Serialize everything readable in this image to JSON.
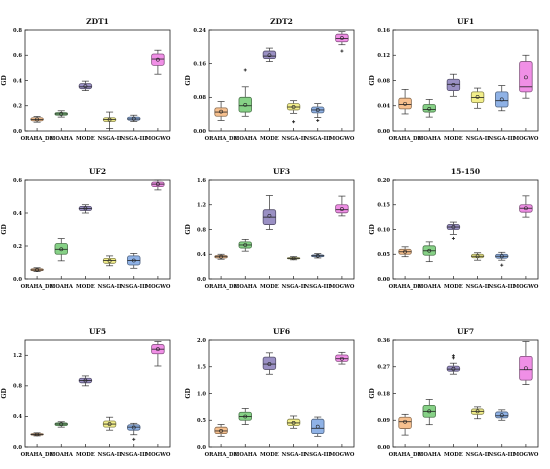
{
  "figure": {
    "categories": [
      "ORAHA_DE",
      "MOAHA",
      "MODE",
      "NSGA-II",
      "NSGA-III",
      "MOGWO"
    ],
    "box_colors": {
      "ORAHA_DE": "#f7c08e",
      "MOAHA": "#86d186",
      "MODE": "#9a90c4",
      "NSGA-II": "#f2ee8a",
      "NSGA-III": "#8fb2e6",
      "MOGWO": "#f08fe6"
    }
  },
  "chart_data": [
    {
      "type": "box",
      "title": "ZDT1",
      "ylabel": "GD",
      "ylim": [
        0,
        0.8
      ],
      "yticks": [
        "0.0",
        "0.2",
        "0.4",
        "0.6",
        "0.8"
      ],
      "boxes": [
        {
          "category": "ORAHA_DE",
          "min": 0.07,
          "q1": 0.08,
          "median": 0.09,
          "q3": 0.105,
          "max": 0.115,
          "mean": 0.092,
          "outliers": []
        },
        {
          "category": "MOAHA",
          "min": 0.11,
          "q1": 0.125,
          "median": 0.135,
          "q3": 0.145,
          "max": 0.16,
          "mean": 0.135,
          "outliers": []
        },
        {
          "category": "MODE",
          "min": 0.32,
          "q1": 0.335,
          "median": 0.35,
          "q3": 0.375,
          "max": 0.395,
          "mean": 0.355,
          "outliers": []
        },
        {
          "category": "NSGA-II",
          "min": 0.02,
          "q1": 0.075,
          "median": 0.09,
          "q3": 0.105,
          "max": 0.15,
          "mean": 0.09,
          "outliers": []
        },
        {
          "category": "NSGA-III",
          "min": 0.075,
          "q1": 0.085,
          "median": 0.095,
          "q3": 0.11,
          "max": 0.125,
          "mean": 0.097,
          "outliers": []
        },
        {
          "category": "MOGWO",
          "min": 0.45,
          "q1": 0.52,
          "median": 0.57,
          "q3": 0.61,
          "max": 0.64,
          "mean": 0.565,
          "outliers": []
        }
      ]
    },
    {
      "type": "box",
      "title": "ZDT2",
      "ylabel": "GD",
      "ylim": [
        0,
        0.24
      ],
      "yticks": [
        "0.00",
        "0.08",
        "0.16",
        "0.24"
      ],
      "boxes": [
        {
          "category": "ORAHA_DE",
          "min": 0.025,
          "q1": 0.035,
          "median": 0.045,
          "q3": 0.055,
          "max": 0.07,
          "mean": 0.046,
          "outliers": []
        },
        {
          "category": "MOAHA",
          "min": 0.035,
          "q1": 0.045,
          "median": 0.06,
          "q3": 0.08,
          "max": 0.105,
          "mean": 0.062,
          "outliers": [
            0.145
          ]
        },
        {
          "category": "MODE",
          "min": 0.165,
          "q1": 0.172,
          "median": 0.178,
          "q3": 0.19,
          "max": 0.197,
          "mean": 0.18,
          "outliers": []
        },
        {
          "category": "NSGA-II",
          "min": 0.042,
          "q1": 0.05,
          "median": 0.057,
          "q3": 0.065,
          "max": 0.072,
          "mean": 0.057,
          "outliers": [
            0.022
          ]
        },
        {
          "category": "NSGA-III",
          "min": 0.032,
          "q1": 0.043,
          "median": 0.05,
          "q3": 0.057,
          "max": 0.065,
          "mean": 0.05,
          "outliers": [
            0.025
          ]
        },
        {
          "category": "MOGWO",
          "min": 0.205,
          "q1": 0.212,
          "median": 0.22,
          "q3": 0.23,
          "max": 0.236,
          "mean": 0.221,
          "outliers": [
            0.19
          ]
        }
      ]
    },
    {
      "type": "box",
      "title": "UF1",
      "ylabel": "GD",
      "ylim": [
        0,
        0.16
      ],
      "yticks": [
        "0.00",
        "0.04",
        "0.08",
        "0.12",
        "0.16"
      ],
      "boxes": [
        {
          "category": "ORAHA_DE",
          "min": 0.027,
          "q1": 0.035,
          "median": 0.042,
          "q3": 0.052,
          "max": 0.066,
          "mean": 0.043,
          "outliers": []
        },
        {
          "category": "MOAHA",
          "min": 0.022,
          "q1": 0.03,
          "median": 0.034,
          "q3": 0.042,
          "max": 0.05,
          "mean": 0.035,
          "outliers": []
        },
        {
          "category": "MODE",
          "min": 0.055,
          "q1": 0.064,
          "median": 0.074,
          "q3": 0.082,
          "max": 0.09,
          "mean": 0.073,
          "outliers": []
        },
        {
          "category": "NSGA-II",
          "min": 0.036,
          "q1": 0.045,
          "median": 0.053,
          "q3": 0.062,
          "max": 0.068,
          "mean": 0.054,
          "outliers": []
        },
        {
          "category": "NSGA-III",
          "min": 0.032,
          "q1": 0.038,
          "median": 0.048,
          "q3": 0.062,
          "max": 0.072,
          "mean": 0.05,
          "outliers": []
        },
        {
          "category": "MOGWO",
          "min": 0.052,
          "q1": 0.062,
          "median": 0.07,
          "q3": 0.11,
          "max": 0.12,
          "mean": 0.085,
          "outliers": []
        }
      ]
    },
    {
      "type": "box",
      "title": "UF2",
      "ylabel": "GD",
      "ylim": [
        0,
        0.6
      ],
      "yticks": [
        "0.0",
        "0.2",
        "0.4",
        "0.6"
      ],
      "boxes": [
        {
          "category": "ORAHA_DE",
          "min": 0.045,
          "q1": 0.05,
          "median": 0.055,
          "q3": 0.062,
          "max": 0.068,
          "mean": 0.056,
          "outliers": []
        },
        {
          "category": "MOAHA",
          "min": 0.11,
          "q1": 0.15,
          "median": 0.18,
          "q3": 0.215,
          "max": 0.245,
          "mean": 0.18,
          "outliers": []
        },
        {
          "category": "MODE",
          "min": 0.4,
          "q1": 0.415,
          "median": 0.428,
          "q3": 0.44,
          "max": 0.45,
          "mean": 0.428,
          "outliers": []
        },
        {
          "category": "NSGA-II",
          "min": 0.08,
          "q1": 0.095,
          "median": 0.112,
          "q3": 0.125,
          "max": 0.14,
          "mean": 0.11,
          "outliers": []
        },
        {
          "category": "NSGA-III",
          "min": 0.065,
          "q1": 0.085,
          "median": 0.112,
          "q3": 0.14,
          "max": 0.155,
          "mean": 0.112,
          "outliers": []
        },
        {
          "category": "MOGWO",
          "min": 0.54,
          "q1": 0.56,
          "median": 0.575,
          "q3": 0.588,
          "max": 0.6,
          "mean": 0.575,
          "outliers": []
        }
      ]
    },
    {
      "type": "box",
      "title": "UF3",
      "ylabel": "GD",
      "ylim": [
        0,
        1.6
      ],
      "yticks": [
        "0.0",
        "0.4",
        "0.8",
        "1.2",
        "1.6"
      ],
      "boxes": [
        {
          "category": "ORAHA_DE",
          "min": 0.32,
          "q1": 0.34,
          "median": 0.36,
          "q3": 0.38,
          "max": 0.4,
          "mean": 0.36,
          "outliers": []
        },
        {
          "category": "MOAHA",
          "min": 0.45,
          "q1": 0.5,
          "median": 0.55,
          "q3": 0.6,
          "max": 0.64,
          "mean": 0.55,
          "outliers": []
        },
        {
          "category": "MODE",
          "min": 0.8,
          "q1": 0.88,
          "median": 1.0,
          "q3": 1.12,
          "max": 1.35,
          "mean": 1.02,
          "outliers": []
        },
        {
          "category": "NSGA-II",
          "min": 0.31,
          "q1": 0.325,
          "median": 0.335,
          "q3": 0.345,
          "max": 0.36,
          "mean": 0.335,
          "outliers": []
        },
        {
          "category": "NSGA-III",
          "min": 0.34,
          "q1": 0.36,
          "median": 0.375,
          "q3": 0.39,
          "max": 0.41,
          "mean": 0.375,
          "outliers": []
        },
        {
          "category": "MOGWO",
          "min": 1.02,
          "q1": 1.07,
          "median": 1.12,
          "q3": 1.2,
          "max": 1.34,
          "mean": 1.13,
          "outliers": []
        }
      ]
    },
    {
      "type": "box",
      "title": "15-150",
      "ylabel": "GD",
      "ylim": [
        0,
        0.2
      ],
      "yticks": [
        "0.00",
        "0.05",
        "0.10",
        "0.15",
        "0.20"
      ],
      "boxes": [
        {
          "category": "ORAHA_DE",
          "min": 0.045,
          "q1": 0.05,
          "median": 0.055,
          "q3": 0.06,
          "max": 0.065,
          "mean": 0.055,
          "outliers": []
        },
        {
          "category": "MOAHA",
          "min": 0.035,
          "q1": 0.048,
          "median": 0.057,
          "q3": 0.067,
          "max": 0.075,
          "mean": 0.057,
          "outliers": []
        },
        {
          "category": "MODE",
          "min": 0.09,
          "q1": 0.1,
          "median": 0.105,
          "q3": 0.11,
          "max": 0.115,
          "mean": 0.105,
          "outliers": [
            0.082
          ]
        },
        {
          "category": "NSGA-II",
          "min": 0.038,
          "q1": 0.043,
          "median": 0.046,
          "q3": 0.05,
          "max": 0.053,
          "mean": 0.046,
          "outliers": []
        },
        {
          "category": "NSGA-III",
          "min": 0.038,
          "q1": 0.042,
          "median": 0.046,
          "q3": 0.05,
          "max": 0.054,
          "mean": 0.046,
          "outliers": [
            0.028
          ]
        },
        {
          "category": "MOGWO",
          "min": 0.125,
          "q1": 0.135,
          "median": 0.143,
          "q3": 0.15,
          "max": 0.168,
          "mean": 0.143,
          "outliers": []
        }
      ]
    },
    {
      "type": "box",
      "title": "UF5",
      "ylabel": "GD",
      "ylim": [
        0,
        1.4
      ],
      "yticks": [
        "0.0",
        "0.4",
        "0.8",
        "1.2"
      ],
      "boxes": [
        {
          "category": "ORAHA_DE",
          "min": 0.145,
          "q1": 0.155,
          "median": 0.165,
          "q3": 0.175,
          "max": 0.185,
          "mean": 0.165,
          "outliers": []
        },
        {
          "category": "MOAHA",
          "min": 0.26,
          "q1": 0.28,
          "median": 0.3,
          "q3": 0.315,
          "max": 0.33,
          "mean": 0.3,
          "outliers": []
        },
        {
          "category": "MODE",
          "min": 0.8,
          "q1": 0.84,
          "median": 0.87,
          "q3": 0.9,
          "max": 0.93,
          "mean": 0.87,
          "outliers": []
        },
        {
          "category": "NSGA-II",
          "min": 0.22,
          "q1": 0.26,
          "median": 0.3,
          "q3": 0.34,
          "max": 0.39,
          "mean": 0.3,
          "outliers": []
        },
        {
          "category": "NSGA-III",
          "min": 0.16,
          "q1": 0.22,
          "median": 0.26,
          "q3": 0.29,
          "max": 0.31,
          "mean": 0.255,
          "outliers": [
            0.1
          ]
        },
        {
          "category": "MOGWO",
          "min": 1.06,
          "q1": 1.22,
          "median": 1.28,
          "q3": 1.34,
          "max": 1.38,
          "mean": 1.28,
          "outliers": []
        }
      ]
    },
    {
      "type": "box",
      "title": "UF6",
      "ylabel": "GD",
      "ylim": [
        0,
        2.0
      ],
      "yticks": [
        "0.0",
        "0.5",
        "1.0",
        "1.5",
        "2.0"
      ],
      "boxes": [
        {
          "category": "ORAHA_DE",
          "min": 0.2,
          "q1": 0.25,
          "median": 0.3,
          "q3": 0.37,
          "max": 0.42,
          "mean": 0.3,
          "outliers": []
        },
        {
          "category": "MOAHA",
          "min": 0.42,
          "q1": 0.5,
          "median": 0.57,
          "q3": 0.65,
          "max": 0.72,
          "mean": 0.57,
          "outliers": []
        },
        {
          "category": "MODE",
          "min": 1.36,
          "q1": 1.45,
          "median": 1.55,
          "q3": 1.68,
          "max": 1.76,
          "mean": 1.55,
          "outliers": []
        },
        {
          "category": "NSGA-II",
          "min": 0.35,
          "q1": 0.4,
          "median": 0.45,
          "q3": 0.52,
          "max": 0.58,
          "mean": 0.45,
          "outliers": []
        },
        {
          "category": "NSGA-III",
          "min": 0.2,
          "q1": 0.25,
          "median": 0.35,
          "q3": 0.52,
          "max": 0.56,
          "mean": 0.38,
          "outliers": []
        },
        {
          "category": "MOGWO",
          "min": 1.55,
          "q1": 1.6,
          "median": 1.65,
          "q3": 1.72,
          "max": 1.77,
          "mean": 1.65,
          "outliers": []
        }
      ]
    },
    {
      "type": "box",
      "title": "UF7",
      "ylabel": "GD",
      "ylim": [
        0,
        0.36
      ],
      "yticks": [
        "0.00",
        "0.09",
        "0.18",
        "0.27",
        "0.36"
      ],
      "boxes": [
        {
          "category": "ORAHA_DE",
          "min": 0.04,
          "q1": 0.062,
          "median": 0.085,
          "q3": 0.1,
          "max": 0.11,
          "mean": 0.085,
          "outliers": []
        },
        {
          "category": "MOAHA",
          "min": 0.075,
          "q1": 0.1,
          "median": 0.12,
          "q3": 0.14,
          "max": 0.16,
          "mean": 0.12,
          "outliers": []
        },
        {
          "category": "MODE",
          "min": 0.245,
          "q1": 0.255,
          "median": 0.262,
          "q3": 0.272,
          "max": 0.282,
          "mean": 0.263,
          "outliers": [
            0.3,
            0.307
          ]
        },
        {
          "category": "NSGA-II",
          "min": 0.095,
          "q1": 0.11,
          "median": 0.12,
          "q3": 0.128,
          "max": 0.135,
          "mean": 0.12,
          "outliers": []
        },
        {
          "category": "NSGA-III",
          "min": 0.09,
          "q1": 0.098,
          "median": 0.105,
          "q3": 0.118,
          "max": 0.125,
          "mean": 0.107,
          "outliers": []
        },
        {
          "category": "MOGWO",
          "min": 0.21,
          "q1": 0.225,
          "median": 0.26,
          "q3": 0.305,
          "max": 0.355,
          "mean": 0.265,
          "outliers": []
        }
      ]
    }
  ]
}
